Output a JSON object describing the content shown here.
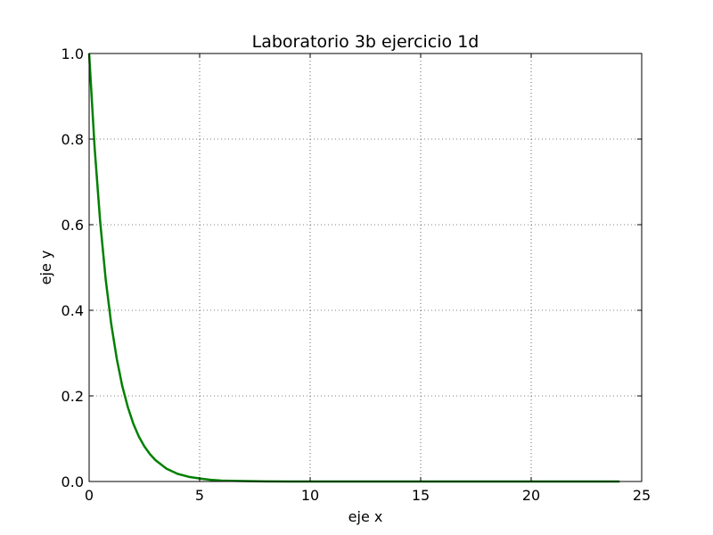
{
  "chart_data": {
    "type": "line",
    "title": "Laboratorio 3b ejercicio 1d",
    "xlabel": "eje x",
    "ylabel": "eje y",
    "xlim": [
      0,
      25
    ],
    "ylim": [
      0.0,
      1.0
    ],
    "x_ticks": [
      "0",
      "5",
      "10",
      "15",
      "20",
      "25"
    ],
    "y_ticks": [
      "0.0",
      "0.2",
      "0.4",
      "0.6",
      "0.8",
      "1.0"
    ],
    "grid": true,
    "grid_style": "dotted",
    "series": [
      {
        "color": "#008000",
        "x": [
          0,
          0.25,
          0.5,
          0.75,
          1.0,
          1.25,
          1.5,
          1.75,
          2.0,
          2.25,
          2.5,
          2.75,
          3.0,
          3.5,
          4.0,
          4.5,
          5.0,
          5.5,
          6.0,
          7.0,
          8.0,
          9.0,
          10.0,
          12.0,
          14.0,
          16.0,
          18.0,
          20.0,
          22.0,
          24.0
        ],
        "y": [
          1.0,
          0.779,
          0.607,
          0.472,
          0.368,
          0.287,
          0.223,
          0.174,
          0.135,
          0.105,
          0.082,
          0.064,
          0.05,
          0.03,
          0.018,
          0.011,
          0.007,
          0.004,
          0.002,
          0.001,
          0.0003,
          0.0001,
          0.0,
          0.0,
          0.0,
          0.0,
          0.0,
          0.0,
          0.0,
          0.0
        ]
      }
    ]
  }
}
